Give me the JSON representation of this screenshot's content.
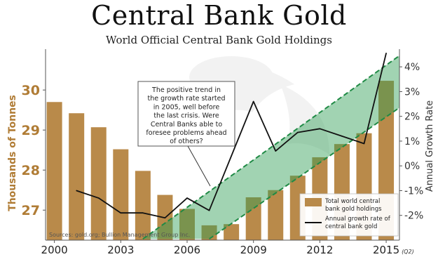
{
  "chart_data": {
    "type": "bar+line",
    "title": "Central Bank Gold",
    "subtitle": "World Official Central Bank Gold Holdings",
    "ylabel_left": "Thousands of Tonnes",
    "ylabel_right": "Annual Growth Rate",
    "x_tick_labels": [
      "2000",
      "2003",
      "2006",
      "2009",
      "2012",
      "2015"
    ],
    "x_tick_suffix": "(Q2)",
    "y_left_ticks": [
      "27",
      "28",
      "29",
      "30"
    ],
    "y_right_ticks": [
      "-2%",
      "-1%",
      "0%",
      "1%",
      "2%",
      "3%",
      "4%"
    ],
    "ylim_left": [
      26.25,
      30.95
    ],
    "ylim_right": [
      -3.0,
      4.6
    ],
    "series": [
      {
        "name": "Total world central bank gold holdings",
        "type": "bar",
        "color": "#b98a4a",
        "x": [
          2000,
          2001,
          2002,
          2003,
          2004,
          2005,
          2006,
          2007,
          2008,
          2009,
          2010,
          2011,
          2012,
          2013,
          2014,
          2015
        ],
        "values": [
          29.7,
          29.42,
          29.07,
          28.52,
          27.98,
          27.38,
          27.03,
          26.62,
          26.65,
          27.32,
          27.5,
          27.86,
          28.32,
          28.65,
          28.92,
          30.23
        ]
      },
      {
        "name": "Annual growth rate of central bank gold",
        "type": "line",
        "color": "#111111",
        "x": [
          2001,
          2002,
          2003,
          2004,
          2005,
          2006,
          2007,
          2008,
          2009,
          2010,
          2011,
          2012,
          2013,
          2014,
          2015
        ],
        "values": [
          -1.0,
          -1.3,
          -1.9,
          -1.9,
          -2.1,
          -1.3,
          -1.8,
          0.4,
          2.6,
          0.6,
          1.35,
          1.5,
          1.2,
          0.9,
          4.55
        ]
      }
    ],
    "trend_band": {
      "color": "#2e9e55",
      "upper_right": [
        [
          2004,
          -2.95
        ],
        [
          2015.6,
          4.45
        ]
      ],
      "lower_right": [
        [
          2007,
          -2.95
        ],
        [
          2015.6,
          2.35
        ]
      ]
    },
    "annotation": "The positive trend in the growth rate started in 2005, well before the last crisis.  Were Central Banks able to foresee problems ahead of others?",
    "legend": {
      "position": "bottom-right",
      "bar_label": "Total world central bank gold holdings",
      "line_label": "Annual growth rate of central bank gold"
    },
    "source": "Sources: gold.org; Bullion Management Group Inc.",
    "grid": false
  }
}
